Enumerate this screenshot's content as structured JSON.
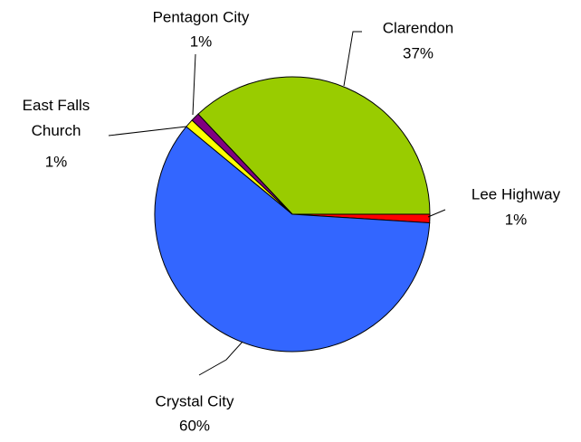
{
  "chart_data": {
    "type": "pie",
    "categories": [
      "Clarendon",
      "Lee Highway",
      "Crystal City",
      "East Falls Church",
      "Pentagon City"
    ],
    "values": [
      37,
      1,
      60,
      1,
      1
    ],
    "value_labels": [
      "37%",
      "1%",
      "60%",
      "1%",
      "1%"
    ],
    "colors": [
      "#99cc00",
      "#ff0000",
      "#3366ff",
      "#ffff00",
      "#800080"
    ]
  }
}
